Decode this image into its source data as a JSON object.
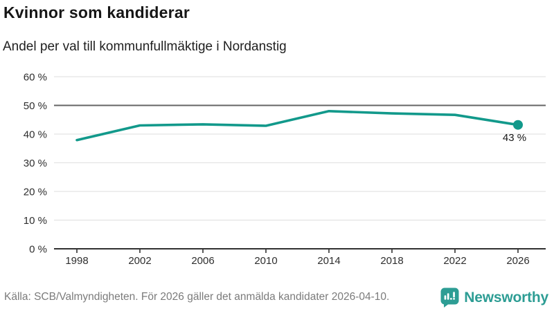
{
  "header": {
    "title": "Kvinnor som kandiderar",
    "subtitle": "Andel per val till kommunfullmäktige i Nordanstig"
  },
  "chart_data": {
    "type": "line",
    "categories": [
      "1998",
      "2002",
      "2006",
      "2010",
      "2014",
      "2018",
      "2022",
      "2026"
    ],
    "values": [
      37.9,
      43.0,
      43.4,
      42.9,
      48.0,
      47.2,
      46.7,
      43.2
    ],
    "title": "Kvinnor som kandiderar",
    "subtitle": "Andel per val till kommunfullmäktige i Nordanstig",
    "xlabel": "",
    "ylabel": "",
    "ylim": [
      0,
      60
    ],
    "yticks": [
      0,
      10,
      20,
      30,
      40,
      50,
      60
    ],
    "ytick_suffix": " %",
    "reference_line": 50,
    "grid": true,
    "legend_position": "none",
    "marker": "last-point-only",
    "end_label": "43 %",
    "line_color": "#12998b"
  },
  "footer": {
    "source": "Källa: SCB/Valmyndigheten. För 2026 gäller det anmälda kandidater 2026-04-10.",
    "brand": "Newsworthy",
    "brand_color": "#2d9d94",
    "icon": "newsworthy-bar-chart-speech-bubble-icon"
  }
}
